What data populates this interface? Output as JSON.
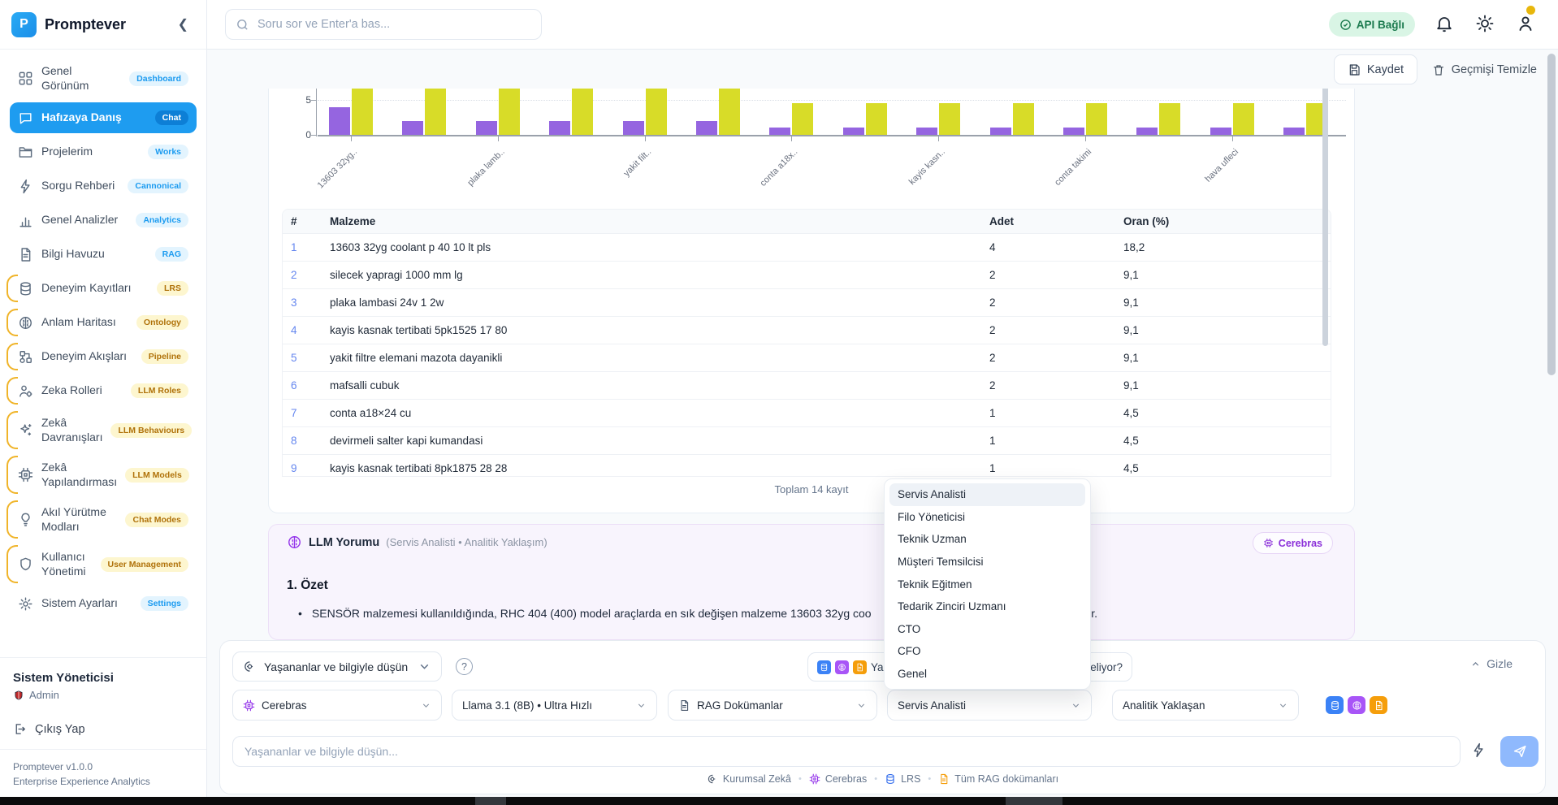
{
  "app": {
    "name": "Promptever",
    "version": "Promptever v1.0.0",
    "subtitle": "Enterprise Experience Analytics"
  },
  "topbar": {
    "search_placeholder": "Soru sor ve Enter'a bas...",
    "api_status": "API Bağlı",
    "colors": {
      "api_pill_bg": "#d9f5e5",
      "api_pill_text": "#1b7a4e",
      "notification_dot": "#e8b70c"
    }
  },
  "sidebar": {
    "items": [
      {
        "label": "Genel Görünüm",
        "badge": "Dashboard",
        "style": "blue",
        "icon": "grid"
      },
      {
        "label": "Hafızaya Danış",
        "badge": "Chat",
        "style": "active",
        "icon": "chat"
      },
      {
        "label": "Projelerim",
        "badge": "Works",
        "style": "blue",
        "icon": "folder"
      },
      {
        "label": "Sorgu Rehberi",
        "badge": "Cannonical",
        "style": "blue",
        "icon": "bolt"
      },
      {
        "label": "Genel Analizler",
        "badge": "Analytics",
        "style": "blue",
        "icon": "barchart"
      },
      {
        "label": "Bilgi Havuzu",
        "badge": "RAG",
        "style": "blue",
        "icon": "document"
      },
      {
        "label": "Deneyim Kayıtları",
        "badge": "LRS",
        "style": "yellow",
        "icon": "database"
      },
      {
        "label": "Anlam Haritası",
        "badge": "Ontology",
        "style": "yellow",
        "icon": "brain"
      },
      {
        "label": "Deneyim Akışları",
        "badge": "Pipeline",
        "style": "yellow",
        "icon": "nodes"
      },
      {
        "label": "Zeka Rolleri",
        "badge": "LLM Roles",
        "style": "yellow",
        "icon": "usergear"
      },
      {
        "label": "Zekâ Davranışları",
        "badge": "LLM Behaviours",
        "style": "yellow",
        "icon": "sparkles"
      },
      {
        "label": "Zekâ Yapılandırması",
        "badge": "LLM Models",
        "style": "yellow",
        "icon": "chip"
      },
      {
        "label": "Akıl Yürütme Modları",
        "badge": "Chat Modes",
        "style": "yellow",
        "icon": "lightbulb"
      },
      {
        "label": "Kullanıcı Yönetimi",
        "badge": "User Management",
        "style": "yellow",
        "icon": "shield"
      },
      {
        "label": "Sistem Ayarları",
        "badge": "Settings",
        "style": "blue",
        "icon": "gear"
      }
    ],
    "user": {
      "name": "Sistem Yöneticisi",
      "role": "Admin",
      "logout": "Çıkış Yap"
    }
  },
  "header_actions": {
    "save": "Kaydet",
    "clear": "Geçmişi Temizle"
  },
  "chart_data": {
    "type": "bar",
    "title": "",
    "x_tick_labels_visible": [
      "13603 32yg..",
      "plaka lamb..",
      "yakit filt..",
      "conta a18x..",
      "kayis kasn..",
      "conta takimi",
      "hava ufleci"
    ],
    "series": [
      {
        "name": "Adet",
        "color": "#9565e0",
        "values": [
          4,
          2,
          2,
          2,
          2,
          2,
          1,
          1,
          1,
          1,
          1,
          1,
          1,
          1
        ]
      },
      {
        "name": "Oran (%)",
        "color": "#d8dc28",
        "values": [
          18.2,
          9.1,
          9.1,
          9.1,
          9.1,
          9.1,
          4.5,
          4.5,
          4.5,
          4.5,
          4.5,
          4.5,
          4.5,
          4.5
        ]
      }
    ],
    "y_ticks_visible": [
      0,
      5
    ],
    "layout": {
      "grid": "dotted line at y=5",
      "clipped_top": true,
      "visible_y_max": 6.5
    }
  },
  "table": {
    "headers": [
      "#",
      "Malzeme",
      "Adet",
      "Oran (%)"
    ],
    "rows": [
      [
        "1",
        "13603 32yg coolant p 40 10 lt pls",
        "4",
        "18,2"
      ],
      [
        "2",
        "silecek yapragi 1000 mm lg",
        "2",
        "9,1"
      ],
      [
        "3",
        "plaka lambasi 24v 1 2w",
        "2",
        "9,1"
      ],
      [
        "4",
        "kayis kasnak tertibati 5pk1525 17 80",
        "2",
        "9,1"
      ],
      [
        "5",
        "yakit filtre elemani mazota dayanikli",
        "2",
        "9,1"
      ],
      [
        "6",
        "mafsalli cubuk",
        "2",
        "9,1"
      ],
      [
        "7",
        "conta a18×24 cu",
        "1",
        "4,5"
      ],
      [
        "8",
        "devirmeli salter kapi kumandasi",
        "1",
        "4,5"
      ],
      [
        "9",
        "kayis kasnak tertibati 8pk1875 28 28",
        "1",
        "4,5"
      ]
    ],
    "total": "Toplam 14 kayıt"
  },
  "dropdown": {
    "selected": "Servis Analisti",
    "items": [
      "Servis Analisti",
      "Filo Yöneticisi",
      "Teknik Uzman",
      "Müşteri Temsilcisi",
      "Teknik Eğitmen",
      "Tedarik Zinciri Uzmanı",
      "CTO",
      "CFO",
      "Genel"
    ]
  },
  "llm": {
    "title": "LLM Yorumu",
    "meta": "(Servis Analisti • Analitik Yaklaşım)",
    "provider": "Cerebras",
    "section": "1. Özet",
    "bullet_prefix": "SENSÖR malzemesi kullanıldığında, RHC 404 (400) model araçlarda en sık değişen malzeme 13603 32yg coo",
    "bullet_suffix": "ülür."
  },
  "composer": {
    "mode_label": "Yaşananlar ve bilgiyle düşün",
    "help": "?",
    "chip_prefix": "Yaşa",
    "chip_suffix": "eliyor?",
    "hide_label": "Gizle",
    "quick_icons": [
      {
        "icon": "database",
        "color": "#3b82f6"
      },
      {
        "icon": "brain",
        "color": "#a855f7"
      },
      {
        "icon": "document",
        "color": "#f59e0b"
      }
    ],
    "selects": [
      {
        "icon": "chip",
        "icon_color": "#9333ea",
        "label": "Cerebras"
      },
      {
        "label": "Llama 3.1 (8B) • Ultra Hızlı"
      },
      {
        "icon": "document",
        "icon_color": "#475569",
        "label": "RAG Dokümanlar"
      },
      {
        "label": "Servis Analisti"
      },
      {
        "label": "Analitik Yaklaşan"
      }
    ],
    "input_placeholder": "Yaşananlar ve bilgiyle düşün...",
    "footer": [
      {
        "icon": "braincog",
        "color": "#475569",
        "label": "Kurumsal Zekâ"
      },
      {
        "icon": "chip",
        "color": "#9333ea",
        "label": "Cerebras"
      },
      {
        "icon": "database",
        "color": "#2563eb",
        "label": "LRS"
      },
      {
        "icon": "document",
        "color": "#f59e0b",
        "label": "Tüm RAG dokümanları"
      }
    ]
  }
}
